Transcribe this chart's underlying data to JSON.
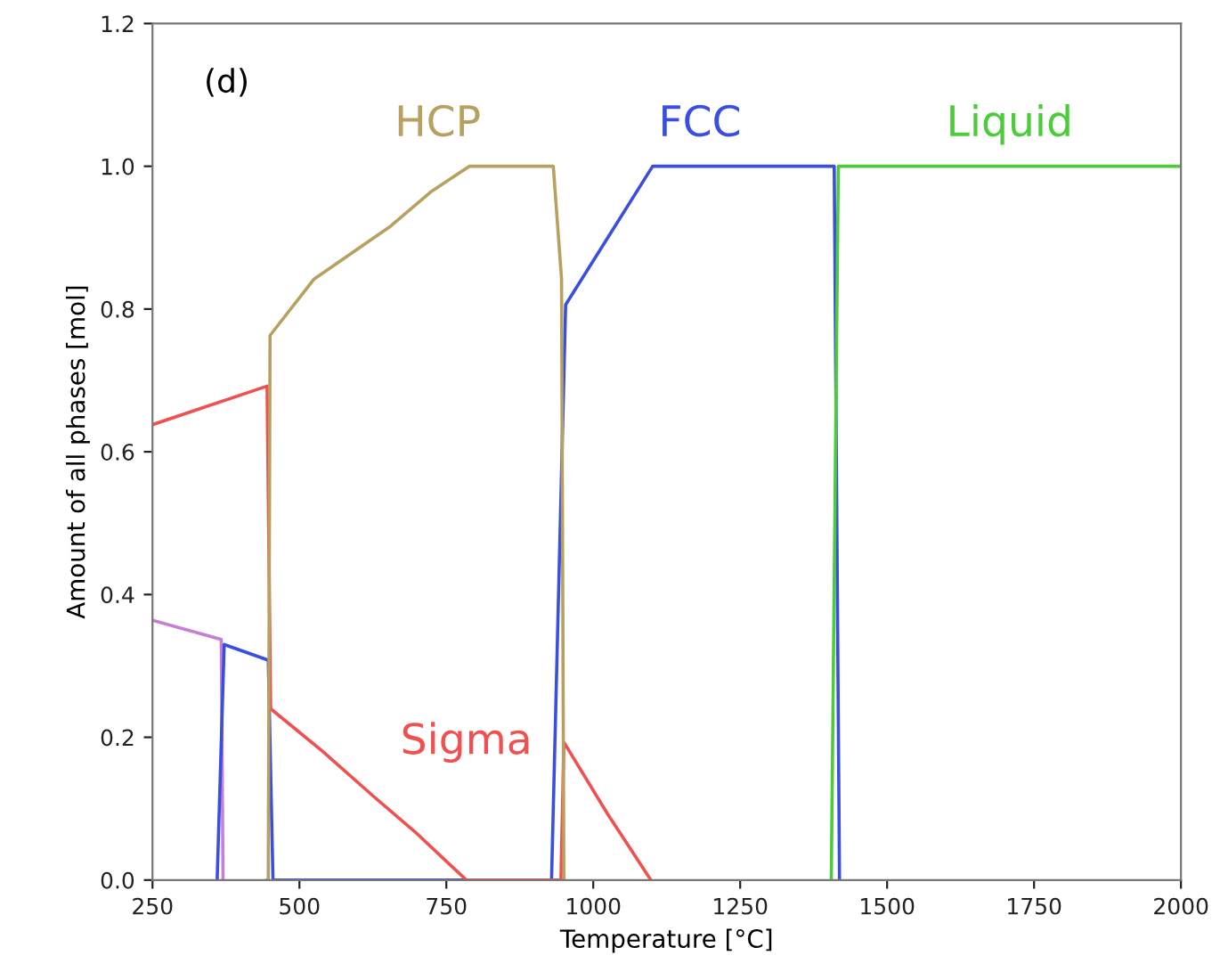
{
  "chart_data": {
    "type": "line",
    "xlabel": "Temperature [°C]",
    "ylabel": "Amount of all phases [mol]",
    "xlim": [
      250,
      2000
    ],
    "xticks": [
      250,
      500,
      750,
      1000,
      1250,
      1500,
      1750,
      2000
    ],
    "ylim": [
      0,
      1.2
    ],
    "yticks": [
      {
        "value": 0,
        "label": "0.0"
      },
      {
        "value": 0.2,
        "label": "0.2"
      },
      {
        "value": 0.4,
        "label": "0.4"
      },
      {
        "value": 0.6,
        "label": "0.6"
      },
      {
        "value": 0.8,
        "label": "0.8"
      },
      {
        "value": 1.0,
        "label": "1.0"
      },
      {
        "value": 1.2,
        "label": "1.2"
      }
    ],
    "grid": false,
    "marker": "none",
    "line_style": "solid",
    "series": [
      {
        "color": "#c77fd6",
        "x": [
          250,
          367,
          370
        ],
        "values": [
          0.364,
          0.337,
          0
        ]
      },
      {
        "name": "FCC",
        "color": "#3a4fe0",
        "x": [
          360,
          372,
          447,
          455,
          929,
          953,
          1101,
          1410,
          1419
        ],
        "values": [
          0,
          0.33,
          0.308,
          0,
          0,
          0.806,
          1.0,
          1.0,
          0
        ]
      },
      {
        "name": "Sigma",
        "color": "#f05050",
        "x": [
          250,
          445,
          451,
          540,
          625,
          700,
          784,
          945,
          950,
          1024,
          1098
        ],
        "values": [
          0.638,
          0.692,
          0.24,
          0.18,
          0.118,
          0.065,
          0,
          0,
          0.193,
          0.093,
          0
        ]
      },
      {
        "name": "HCP",
        "color": "#b8a060",
        "x": [
          445,
          447,
          450,
          525,
          655,
          725,
          789,
          932,
          946,
          950
        ],
        "values": [
          0,
          0,
          0.763,
          0.842,
          0.916,
          0.965,
          1.0,
          1.0,
          0.842,
          0
        ]
      },
      {
        "name": "Liquid",
        "color": "#4ccc3a",
        "x": [
          1405,
          1417,
          2000
        ],
        "values": [
          0,
          1.0,
          1.0
        ]
      }
    ],
    "annotations": [
      "(d)"
    ]
  }
}
